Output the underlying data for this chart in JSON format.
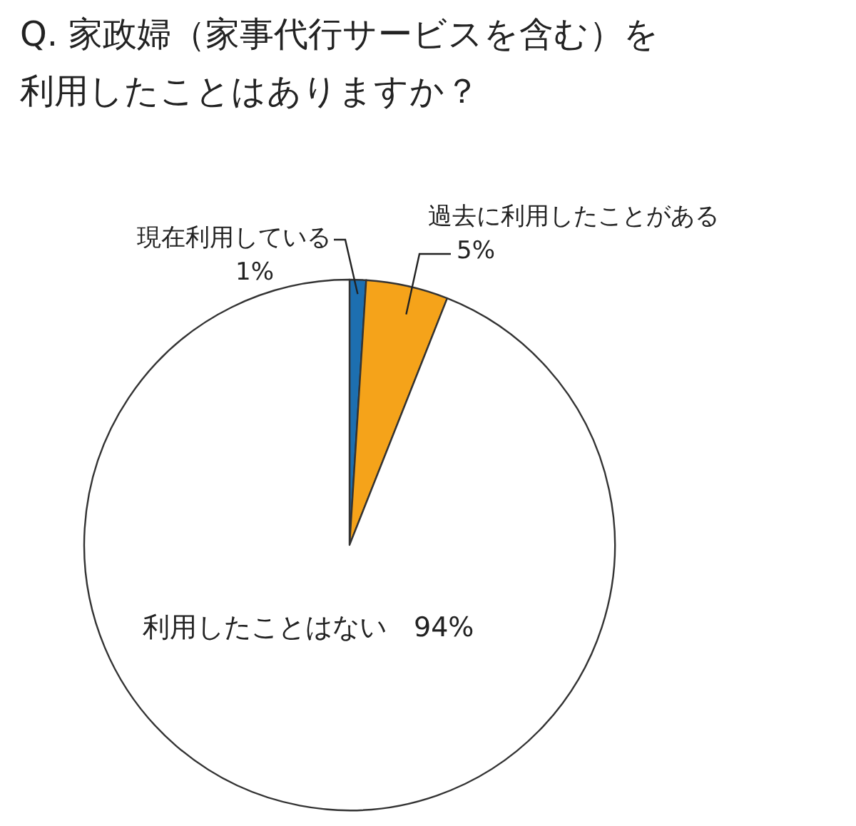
{
  "chart_data": {
    "type": "pie",
    "title": "Q. 家政婦（家事代行サービスを含む）を利用したことはありますか？",
    "categories": [
      "現在利用している",
      "過去に利用したことがある",
      "利用したことはない"
    ],
    "values": [
      1,
      5,
      94
    ],
    "colors": [
      "#1d6fb0",
      "#f5a31a",
      "#ffffff"
    ],
    "value_labels": [
      "1%",
      "5%",
      "94%"
    ]
  }
}
